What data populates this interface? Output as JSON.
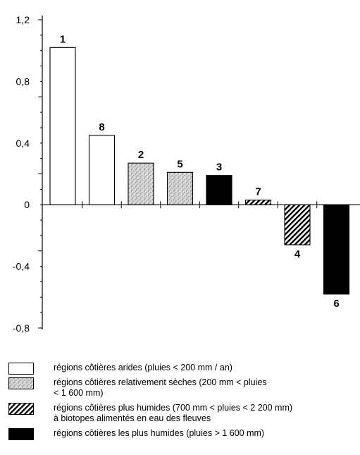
{
  "chart_data": {
    "type": "bar",
    "categories": [
      "1",
      "8",
      "2",
      "5",
      "3",
      "7",
      "4",
      "6"
    ],
    "values": [
      1.02,
      0.45,
      0.27,
      0.21,
      0.19,
      0.03,
      -0.26,
      -0.58
    ],
    "groups": [
      "arid",
      "arid",
      "dry",
      "dry",
      "wettest",
      "wet",
      "wet",
      "wettest"
    ],
    "ylim": [
      -0.8,
      1.2
    ],
    "y_ticks": [
      "-0,8",
      "-0,4",
      "0",
      "0,4",
      "0,8",
      "1,2"
    ],
    "y_tick_values": [
      -0.8,
      -0.4,
      0,
      0.4,
      0.8,
      1.2
    ],
    "title": "",
    "xlabel": "",
    "ylabel": "",
    "grid": false,
    "legend_position": "bottom",
    "legend": [
      {
        "key": "arid",
        "fill": "white",
        "label": "régions côtières arides (pluies < 200 mm / an)"
      },
      {
        "key": "dry",
        "fill": "speckled",
        "label": "régions côtières relativement sèches (200 mm < pluies\n< 1 600 mm)"
      },
      {
        "key": "wet",
        "fill": "hatched",
        "label": "régions côtières plus humides (700 mm < pluies < 2 200 mm)\nà biotopes alimentés en eau des fleuves"
      },
      {
        "key": "wettest",
        "fill": "black",
        "label": "régions côtières les plus humides (pluies > 1 600 mm)"
      }
    ]
  }
}
